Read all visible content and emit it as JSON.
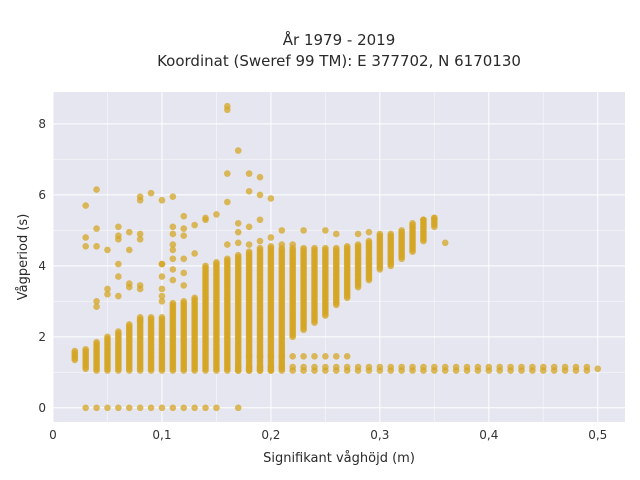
{
  "chart_data": {
    "type": "scatter",
    "title": "År 1979 - 2019",
    "subtitle": "Koordinat (Sweref 99 TM): E 377702, N 6170130",
    "xlabel": "Signifikant våghöjd (m)",
    "ylabel": "Vågperiod (s)",
    "xlim": [
      0,
      0.525
    ],
    "ylim": [
      -0.4,
      8.9
    ],
    "x_ticks": [
      0,
      0.1,
      0.2,
      0.3,
      0.4,
      0.5
    ],
    "x_tick_labels": [
      "0",
      "0,1",
      "0,2",
      "0,3",
      "0,4",
      "0,5"
    ],
    "y_ticks": [
      0,
      2,
      4,
      6,
      8
    ],
    "y_tick_labels": [
      "0",
      "2",
      "4",
      "6",
      "8"
    ],
    "grid": true,
    "legend": "none",
    "colors": {
      "background": "#e5e6ef",
      "grid": "#ffffff",
      "point": "#d4a524",
      "text": "#2a2a2a"
    },
    "column_step": 0.01,
    "columns": [
      {
        "x": 0.02,
        "ymin": 1.35,
        "ymax": 1.6
      },
      {
        "x": 0.03,
        "ymin": 1.1,
        "ymax": 1.65
      },
      {
        "x": 0.04,
        "ymin": 1.05,
        "ymax": 1.85
      },
      {
        "x": 0.05,
        "ymin": 1.05,
        "ymax": 2.0
      },
      {
        "x": 0.06,
        "ymin": 1.05,
        "ymax": 2.15
      },
      {
        "x": 0.07,
        "ymin": 1.05,
        "ymax": 2.35
      },
      {
        "x": 0.08,
        "ymin": 1.05,
        "ymax": 2.55
      },
      {
        "x": 0.09,
        "ymin": 1.05,
        "ymax": 2.55
      },
      {
        "x": 0.1,
        "ymin": 1.05,
        "ymax": 2.55
      },
      {
        "x": 0.11,
        "ymin": 1.05,
        "ymax": 2.95
      },
      {
        "x": 0.12,
        "ymin": 1.05,
        "ymax": 3.0
      },
      {
        "x": 0.13,
        "ymin": 1.05,
        "ymax": 3.1
      },
      {
        "x": 0.14,
        "ymin": 1.05,
        "ymax": 4.0
      },
      {
        "x": 0.15,
        "ymin": 1.05,
        "ymax": 4.1
      },
      {
        "x": 0.16,
        "ymin": 1.05,
        "ymax": 4.2
      },
      {
        "x": 0.17,
        "ymin": 1.05,
        "ymax": 4.3
      },
      {
        "x": 0.18,
        "ymin": 1.05,
        "ymax": 4.4
      },
      {
        "x": 0.19,
        "ymin": 1.05,
        "ymax": 4.5
      },
      {
        "x": 0.2,
        "ymin": 1.05,
        "ymax": 4.5
      },
      {
        "x": 0.21,
        "ymin": 1.1,
        "ymax": 4.5
      },
      {
        "x": 0.22,
        "ymin": 2.0,
        "ymax": 4.5
      },
      {
        "x": 0.23,
        "ymin": 2.2,
        "ymax": 4.5
      },
      {
        "x": 0.24,
        "ymin": 2.4,
        "ymax": 4.5
      },
      {
        "x": 0.25,
        "ymin": 2.6,
        "ymax": 4.5
      },
      {
        "x": 0.26,
        "ymin": 2.9,
        "ymax": 4.5
      },
      {
        "x": 0.27,
        "ymin": 3.1,
        "ymax": 4.55
      },
      {
        "x": 0.28,
        "ymin": 3.4,
        "ymax": 4.6
      },
      {
        "x": 0.29,
        "ymin": 3.6,
        "ymax": 4.7
      },
      {
        "x": 0.3,
        "ymin": 3.9,
        "ymax": 4.85
      },
      {
        "x": 0.31,
        "ymin": 4.0,
        "ymax": 4.9
      },
      {
        "x": 0.32,
        "ymin": 4.2,
        "ymax": 5.0
      },
      {
        "x": 0.33,
        "ymin": 4.4,
        "ymax": 5.2
      },
      {
        "x": 0.34,
        "ymin": 4.7,
        "ymax": 5.3
      },
      {
        "x": 0.35,
        "ymin": 5.1,
        "ymax": 5.35
      }
    ],
    "lower_band": {
      "x_from": 0.17,
      "x_to": 0.49,
      "step": 0.01,
      "y_top": 1.45,
      "y_bottom": 1.05
    },
    "extra_points": [
      [
        0.03,
        0.0
      ],
      [
        0.04,
        0.0
      ],
      [
        0.05,
        0.0
      ],
      [
        0.06,
        0.0
      ],
      [
        0.07,
        0.0
      ],
      [
        0.08,
        0.0
      ],
      [
        0.09,
        0.0
      ],
      [
        0.1,
        0.0
      ],
      [
        0.11,
        0.0
      ],
      [
        0.12,
        0.0
      ],
      [
        0.13,
        0.0
      ],
      [
        0.14,
        0.0
      ],
      [
        0.15,
        0.0
      ],
      [
        0.17,
        0.0
      ],
      [
        0.5,
        1.1
      ],
      [
        0.18,
        1.45
      ],
      [
        0.19,
        1.45
      ],
      [
        0.2,
        1.45
      ],
      [
        0.21,
        1.45
      ],
      [
        0.22,
        1.45
      ],
      [
        0.23,
        1.45
      ],
      [
        0.24,
        1.45
      ],
      [
        0.25,
        1.45
      ],
      [
        0.26,
        1.45
      ],
      [
        0.27,
        1.45
      ],
      [
        0.16,
        8.5
      ],
      [
        0.16,
        8.4
      ],
      [
        0.17,
        7.25
      ],
      [
        0.18,
        6.6
      ],
      [
        0.19,
        6.5
      ],
      [
        0.16,
        6.6
      ],
      [
        0.18,
        6.1
      ],
      [
        0.19,
        6.0
      ],
      [
        0.2,
        5.9
      ],
      [
        0.15,
        5.45
      ],
      [
        0.16,
        5.8
      ],
      [
        0.17,
        5.2
      ],
      [
        0.18,
        5.1
      ],
      [
        0.17,
        4.95
      ],
      [
        0.19,
        5.3
      ],
      [
        0.21,
        5.0
      ],
      [
        0.2,
        4.8
      ],
      [
        0.19,
        4.7
      ],
      [
        0.18,
        4.6
      ],
      [
        0.16,
        4.6
      ],
      [
        0.17,
        4.65
      ],
      [
        0.2,
        4.55
      ],
      [
        0.21,
        4.6
      ],
      [
        0.22,
        4.6
      ],
      [
        0.23,
        5.0
      ],
      [
        0.25,
        5.0
      ],
      [
        0.26,
        4.9
      ],
      [
        0.28,
        4.9
      ],
      [
        0.29,
        4.95
      ],
      [
        0.3,
        4.9
      ],
      [
        0.36,
        4.65
      ],
      [
        0.35,
        5.35
      ],
      [
        0.34,
        5.3
      ],
      [
        0.03,
        5.7
      ],
      [
        0.03,
        4.8
      ],
      [
        0.03,
        4.55
      ],
      [
        0.04,
        6.15
      ],
      [
        0.04,
        5.05
      ],
      [
        0.04,
        4.55
      ],
      [
        0.04,
        3.0
      ],
      [
        0.04,
        2.85
      ],
      [
        0.05,
        4.45
      ],
      [
        0.05,
        3.35
      ],
      [
        0.05,
        3.2
      ],
      [
        0.06,
        5.1
      ],
      [
        0.06,
        4.85
      ],
      [
        0.06,
        4.75
      ],
      [
        0.06,
        3.7
      ],
      [
        0.06,
        3.15
      ],
      [
        0.06,
        4.05
      ],
      [
        0.07,
        4.95
      ],
      [
        0.07,
        4.45
      ],
      [
        0.07,
        3.5
      ],
      [
        0.07,
        3.4
      ],
      [
        0.08,
        5.95
      ],
      [
        0.08,
        5.85
      ],
      [
        0.08,
        4.9
      ],
      [
        0.08,
        4.75
      ],
      [
        0.08,
        3.45
      ],
      [
        0.08,
        3.35
      ],
      [
        0.08,
        2.45
      ],
      [
        0.09,
        6.05
      ],
      [
        0.1,
        5.85
      ],
      [
        0.1,
        4.05
      ],
      [
        0.1,
        3.7
      ],
      [
        0.1,
        3.35
      ],
      [
        0.1,
        3.15
      ],
      [
        0.1,
        3.0
      ],
      [
        0.11,
        5.95
      ],
      [
        0.11,
        5.1
      ],
      [
        0.11,
        4.9
      ],
      [
        0.11,
        4.6
      ],
      [
        0.11,
        4.45
      ],
      [
        0.11,
        4.2
      ],
      [
        0.11,
        3.9
      ],
      [
        0.11,
        3.6
      ],
      [
        0.12,
        5.4
      ],
      [
        0.12,
        5.05
      ],
      [
        0.12,
        4.85
      ],
      [
        0.12,
        4.2
      ],
      [
        0.12,
        3.8
      ],
      [
        0.12,
        3.45
      ],
      [
        0.13,
        5.15
      ],
      [
        0.13,
        4.35
      ],
      [
        0.14,
        5.35
      ],
      [
        0.14,
        5.3
      ],
      [
        0.1,
        4.05
      ]
    ]
  }
}
